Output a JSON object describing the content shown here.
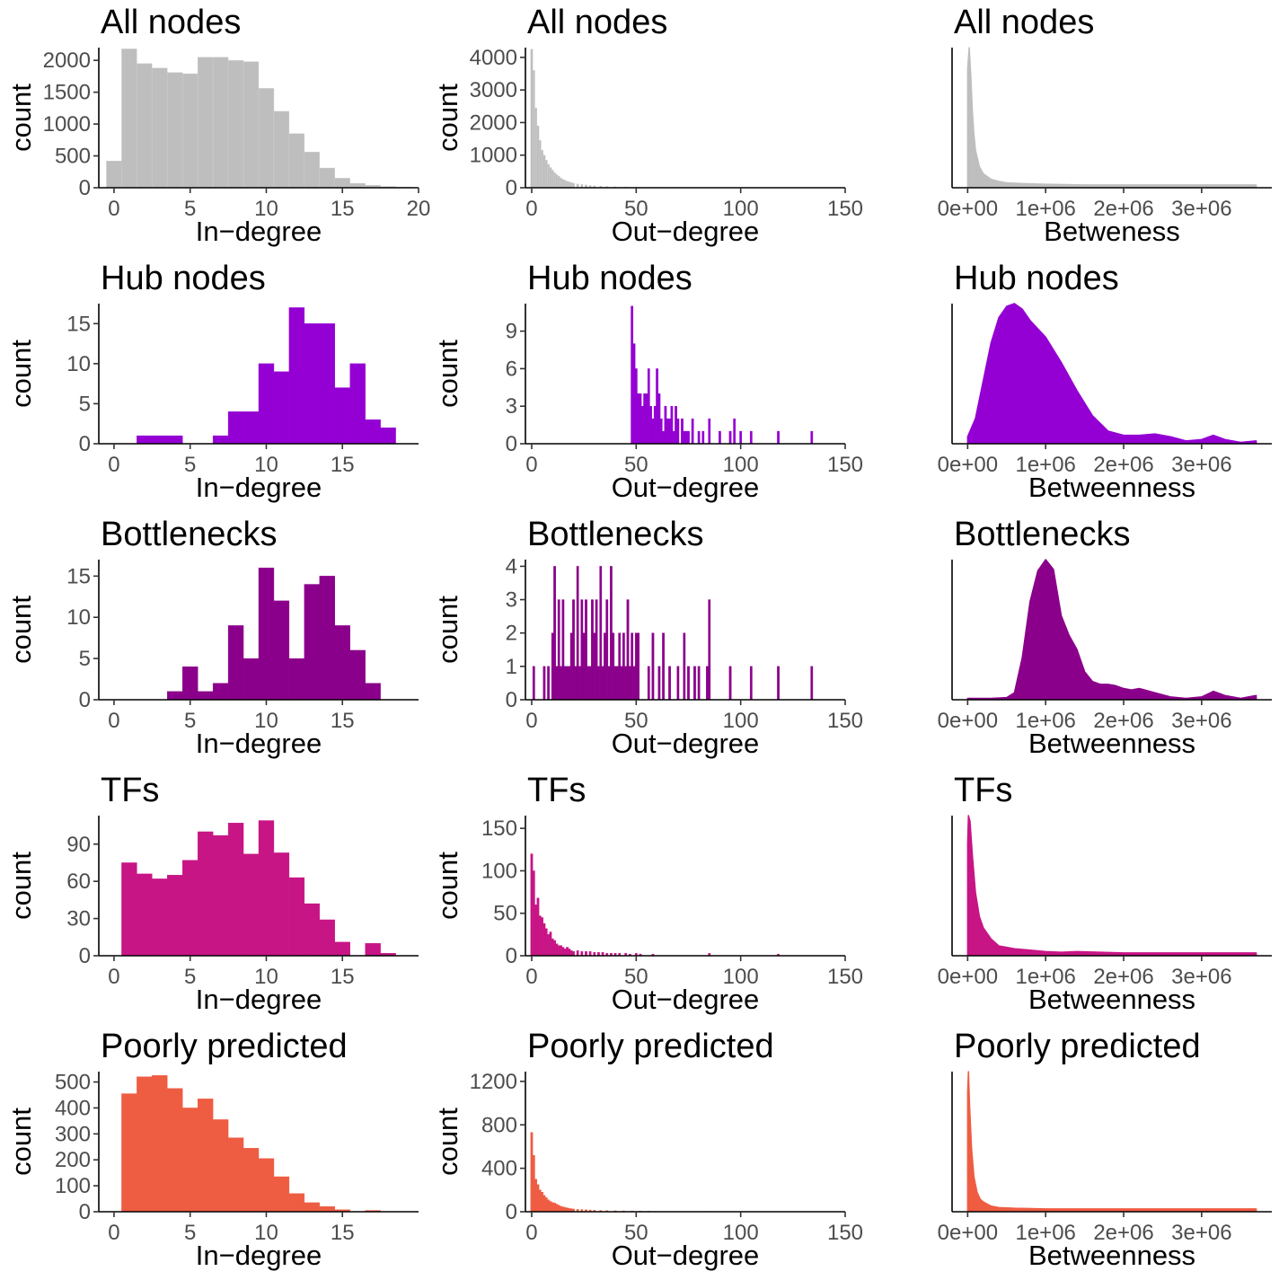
{
  "chart_data": [
    {
      "id": "p1",
      "type": "bar",
      "title": "All nodes",
      "xlabel": "In−degree",
      "ylabel": "count",
      "color": "#bebebe",
      "xlim": [
        -1,
        20
      ],
      "xticks": [
        0,
        5,
        10,
        15,
        20
      ],
      "ylim": [
        0,
        2200
      ],
      "yticks": [
        0,
        500,
        1000,
        1500,
        2000
      ],
      "binwidth": 1,
      "x": [
        0,
        1,
        2,
        3,
        4,
        5,
        6,
        7,
        8,
        9,
        10,
        11,
        12,
        13,
        14,
        15,
        16,
        17,
        18,
        19
      ],
      "values": [
        420,
        2180,
        1950,
        1880,
        1810,
        1790,
        2050,
        2050,
        2000,
        1980,
        1560,
        1200,
        850,
        560,
        310,
        150,
        70,
        40,
        20,
        10
      ]
    },
    {
      "id": "p2",
      "type": "bar",
      "title": "All nodes",
      "xlabel": "Out−degree",
      "ylabel": "count",
      "color": "#bebebe",
      "xlim": [
        -3,
        150
      ],
      "xticks": [
        0,
        50,
        100,
        150
      ],
      "ylim": [
        0,
        4300
      ],
      "yticks": [
        0,
        1000,
        2000,
        3000,
        4000
      ],
      "binwidth": 1,
      "x": [
        0,
        1,
        2,
        3,
        4,
        5,
        6,
        7,
        8,
        9,
        10,
        11,
        12,
        13,
        14,
        15,
        16,
        17,
        18,
        19,
        20,
        22,
        24,
        26,
        28,
        30,
        33,
        36,
        40,
        45,
        50,
        56,
        62,
        70,
        78,
        85,
        92,
        100,
        118,
        135
      ],
      "values": [
        4250,
        3600,
        2450,
        1900,
        1450,
        1150,
        1000,
        850,
        720,
        620,
        540,
        460,
        400,
        350,
        300,
        260,
        230,
        200,
        180,
        160,
        140,
        120,
        100,
        85,
        70,
        60,
        50,
        40,
        30,
        25,
        20,
        15,
        12,
        10,
        8,
        6,
        6,
        5,
        4,
        4
      ]
    },
    {
      "id": "p3",
      "type": "area",
      "title": "All nodes",
      "xlabel": "Betweness",
      "ylabel": "",
      "color": "#bebebe",
      "xlim": [
        -200000,
        3900000
      ],
      "xticks": [
        0,
        1000000,
        2000000,
        3000000
      ],
      "xticklabels": [
        "0e+00",
        "1e+06",
        "2e+06",
        "3e+06"
      ],
      "ylim": [
        0,
        1
      ],
      "x": [
        0,
        20000,
        40000,
        60000,
        80000,
        100000,
        150000,
        200000,
        300000,
        400000,
        500000,
        700000,
        1000000,
        1500000,
        2000000,
        3000000,
        3700000
      ],
      "values": [
        0.85,
        1.0,
        0.8,
        0.55,
        0.38,
        0.27,
        0.15,
        0.1,
        0.06,
        0.045,
        0.035,
        0.03,
        0.025,
        0.02,
        0.02,
        0.02,
        0.02
      ]
    },
    {
      "id": "p4",
      "type": "bar",
      "title": "Hub nodes",
      "xlabel": "In−degree",
      "ylabel": "count",
      "color": "#9400d3",
      "xlim": [
        -1,
        20
      ],
      "xticks": [
        0,
        5,
        10,
        15
      ],
      "ylim": [
        0,
        17.5
      ],
      "yticks": [
        0,
        5,
        10,
        15
      ],
      "binwidth": 1,
      "x": [
        2,
        3,
        4,
        7,
        8,
        9,
        10,
        11,
        12,
        13,
        14,
        15,
        16,
        17,
        18
      ],
      "values": [
        1,
        1,
        1,
        1,
        4,
        4,
        10,
        9,
        17,
        15,
        15,
        7,
        10,
        3,
        2
      ]
    },
    {
      "id": "p5",
      "type": "bar",
      "title": "Hub nodes",
      "xlabel": "Out−degree",
      "ylabel": "count",
      "color": "#9400d3",
      "xlim": [
        -3,
        150
      ],
      "xticks": [
        0,
        50,
        100,
        150
      ],
      "ylim": [
        0,
        11.2
      ],
      "yticks": [
        0,
        3,
        6,
        9
      ],
      "binwidth": 1,
      "x": [
        48,
        49,
        50,
        51,
        52,
        53,
        54,
        55,
        56,
        57,
        58,
        59,
        60,
        61,
        62,
        63,
        64,
        65,
        66,
        67,
        68,
        69,
        70,
        72,
        73,
        74,
        75,
        77,
        80,
        82,
        85,
        90,
        95,
        97,
        100,
        105,
        118,
        134
      ],
      "values": [
        11,
        8,
        6,
        4,
        4,
        3,
        4,
        4,
        6,
        3,
        2,
        3,
        6,
        4,
        2,
        1,
        3,
        2,
        2,
        3,
        1,
        3,
        2,
        2,
        1,
        1,
        1,
        2,
        1,
        1,
        2,
        1,
        1,
        2,
        1,
        1,
        1,
        1
      ]
    },
    {
      "id": "p6",
      "type": "area",
      "title": "Hub nodes",
      "xlabel": "Betweenness",
      "ylabel": "",
      "color": "#9400d3",
      "xlim": [
        -200000,
        3900000
      ],
      "xticks": [
        0,
        1000000,
        2000000,
        3000000
      ],
      "xticklabels": [
        "0e+00",
        "1e+06",
        "2e+06",
        "3e+06"
      ],
      "ylim": [
        0,
        1
      ],
      "x": [
        0,
        100000,
        200000,
        300000,
        400000,
        500000,
        600000,
        700000,
        800000,
        900000,
        1000000,
        1200000,
        1400000,
        1600000,
        1800000,
        2000000,
        2200000,
        2400000,
        2600000,
        2800000,
        3000000,
        3150000,
        3300000,
        3500000,
        3700000
      ],
      "values": [
        0.05,
        0.18,
        0.45,
        0.72,
        0.9,
        0.98,
        1.0,
        0.96,
        0.88,
        0.82,
        0.76,
        0.58,
        0.38,
        0.2,
        0.09,
        0.06,
        0.06,
        0.07,
        0.05,
        0.02,
        0.03,
        0.06,
        0.03,
        0.01,
        0.02
      ]
    },
    {
      "id": "p7",
      "type": "bar",
      "title": "Bottlenecks",
      "xlabel": "In−degree",
      "ylabel": "count",
      "color": "#8b008b",
      "xlim": [
        -1,
        20
      ],
      "xticks": [
        0,
        5,
        10,
        15
      ],
      "ylim": [
        0,
        17
      ],
      "yticks": [
        0,
        5,
        10,
        15
      ],
      "binwidth": 1,
      "x": [
        4,
        5,
        6,
        7,
        8,
        9,
        10,
        11,
        12,
        13,
        14,
        15,
        16,
        17
      ],
      "values": [
        1,
        4,
        1,
        2,
        9,
        5,
        16,
        12,
        5,
        14,
        15,
        9,
        6,
        2
      ]
    },
    {
      "id": "p8",
      "type": "bar",
      "title": "Bottlenecks",
      "xlabel": "Out−degree",
      "ylabel": "count",
      "color": "#8b008b",
      "xlim": [
        -3,
        150
      ],
      "xticks": [
        0,
        50,
        100,
        150
      ],
      "ylim": [
        0,
        4.2
      ],
      "yticks": [
        0,
        1,
        2,
        3,
        4
      ],
      "binwidth": 1,
      "x": [
        1,
        6,
        8,
        10,
        11,
        12,
        13,
        14,
        15,
        16,
        17,
        18,
        19,
        20,
        21,
        22,
        23,
        24,
        25,
        26,
        27,
        28,
        29,
        30,
        31,
        32,
        33,
        34,
        35,
        36,
        37,
        38,
        39,
        40,
        41,
        42,
        43,
        44,
        45,
        46,
        47,
        48,
        49,
        50,
        51,
        56,
        58,
        61,
        63,
        66,
        70,
        73,
        75,
        78,
        80,
        84,
        85,
        95,
        105,
        118,
        134
      ],
      "values": [
        1,
        1,
        1,
        2,
        4,
        1,
        3,
        1,
        3,
        1,
        1,
        1,
        2,
        3,
        1,
        4,
        1,
        3,
        2,
        3,
        1,
        1,
        3,
        2,
        3,
        1,
        4,
        1,
        2,
        3,
        1,
        4,
        2,
        1,
        1,
        2,
        1,
        2,
        1,
        3,
        1,
        2,
        1,
        2,
        2,
        1,
        2,
        1,
        2,
        1,
        1,
        2,
        1,
        1,
        1,
        1,
        3,
        1,
        1,
        1,
        1
      ]
    },
    {
      "id": "p9",
      "type": "area",
      "title": "Bottlenecks",
      "xlabel": "Betweenness",
      "ylabel": "",
      "color": "#8b008b",
      "xlim": [
        -200000,
        3900000
      ],
      "xticks": [
        0,
        1000000,
        2000000,
        3000000
      ],
      "xticklabels": [
        "0e+00",
        "1e+06",
        "2e+06",
        "3e+06"
      ],
      "ylim": [
        0,
        1
      ],
      "x": [
        0,
        300000,
        500000,
        600000,
        700000,
        800000,
        900000,
        1000000,
        1100000,
        1200000,
        1300000,
        1400000,
        1500000,
        1600000,
        1700000,
        1800000,
        1900000,
        2000000,
        2100000,
        2200000,
        2400000,
        2600000,
        2800000,
        3000000,
        3150000,
        3300000,
        3500000,
        3700000
      ],
      "values": [
        0.01,
        0.01,
        0.015,
        0.05,
        0.3,
        0.7,
        0.92,
        1.0,
        0.93,
        0.6,
        0.46,
        0.36,
        0.2,
        0.13,
        0.11,
        0.11,
        0.1,
        0.08,
        0.07,
        0.08,
        0.05,
        0.02,
        0.01,
        0.02,
        0.06,
        0.03,
        0.01,
        0.03
      ]
    },
    {
      "id": "p10",
      "type": "bar",
      "title": "TFs",
      "xlabel": "In−degree",
      "ylabel": "count",
      "color": "#c71585",
      "xlim": [
        -1,
        20
      ],
      "xticks": [
        0,
        5,
        10,
        15
      ],
      "ylim": [
        0,
        113
      ],
      "yticks": [
        0,
        30,
        60,
        90
      ],
      "binwidth": 1,
      "x": [
        1,
        2,
        3,
        4,
        5,
        6,
        7,
        8,
        9,
        10,
        11,
        12,
        13,
        14,
        15,
        17,
        18
      ],
      "values": [
        75,
        66,
        62,
        65,
        77,
        100,
        97,
        107,
        82,
        109,
        83,
        63,
        42,
        29,
        11,
        10,
        2
      ]
    },
    {
      "id": "p11",
      "type": "bar",
      "title": "TFs",
      "xlabel": "Out−degree",
      "ylabel": "count",
      "color": "#c71585",
      "xlim": [
        -3,
        150
      ],
      "xticks": [
        0,
        50,
        100,
        150
      ],
      "ylim": [
        0,
        165
      ],
      "yticks": [
        0,
        50,
        100,
        150
      ],
      "binwidth": 1,
      "x": [
        0,
        1,
        2,
        3,
        4,
        5,
        6,
        7,
        8,
        9,
        10,
        11,
        12,
        13,
        14,
        15,
        16,
        17,
        18,
        19,
        20,
        22,
        24,
        26,
        28,
        30,
        32,
        34,
        36,
        38,
        40,
        42,
        45,
        47,
        50,
        52,
        58,
        85,
        118
      ],
      "values": [
        120,
        100,
        60,
        68,
        47,
        45,
        38,
        32,
        25,
        28,
        20,
        18,
        14,
        12,
        12,
        10,
        8,
        10,
        8,
        6,
        5,
        6,
        5,
        5,
        5,
        4,
        4,
        4,
        3,
        3,
        3,
        3,
        3,
        2,
        3,
        2,
        2,
        3,
        2
      ]
    },
    {
      "id": "p12",
      "type": "area",
      "title": "TFs",
      "xlabel": "Betweenness",
      "ylabel": "",
      "color": "#c71585",
      "xlim": [
        -200000,
        3900000
      ],
      "xticks": [
        0,
        1000000,
        2000000,
        3000000
      ],
      "xticklabels": [
        "0e+00",
        "1e+06",
        "2e+06",
        "3e+06"
      ],
      "ylim": [
        0,
        1
      ],
      "x": [
        0,
        10000,
        30000,
        60000,
        100000,
        150000,
        200000,
        250000,
        300000,
        400000,
        500000,
        600000,
        800000,
        1000000,
        1200000,
        1400000,
        2000000,
        3000000,
        3700000
      ],
      "values": [
        0.8,
        1.0,
        0.96,
        0.72,
        0.45,
        0.28,
        0.2,
        0.16,
        0.12,
        0.07,
        0.06,
        0.05,
        0.04,
        0.03,
        0.025,
        0.03,
        0.02,
        0.02,
        0.02
      ]
    },
    {
      "id": "p13",
      "type": "bar",
      "title": "Poorly predicted",
      "xlabel": "In−degree",
      "ylabel": "count",
      "color": "#ee5c42",
      "xlim": [
        -1,
        20
      ],
      "xticks": [
        0,
        5,
        10,
        15
      ],
      "ylim": [
        0,
        540
      ],
      "yticks": [
        0,
        100,
        200,
        300,
        400,
        500
      ],
      "binwidth": 1,
      "x": [
        1,
        2,
        3,
        4,
        5,
        6,
        7,
        8,
        9,
        10,
        11,
        12,
        13,
        14,
        15,
        17
      ],
      "values": [
        455,
        520,
        525,
        475,
        400,
        435,
        355,
        285,
        245,
        205,
        135,
        70,
        35,
        20,
        8,
        5
      ]
    },
    {
      "id": "p14",
      "type": "bar",
      "title": "Poorly predicted",
      "xlabel": "Out−degree",
      "ylabel": "count",
      "color": "#ee5c42",
      "xlim": [
        -3,
        150
      ],
      "xticks": [
        0,
        50,
        100,
        150
      ],
      "ylim": [
        0,
        1290
      ],
      "yticks": [
        0,
        400,
        800,
        1200
      ],
      "binwidth": 1,
      "x": [
        0,
        1,
        2,
        3,
        4,
        5,
        6,
        7,
        8,
        9,
        10,
        11,
        12,
        13,
        14,
        15,
        16,
        17,
        18,
        19,
        20,
        22,
        24,
        26,
        28,
        30,
        33,
        36,
        40,
        44,
        48,
        52,
        56,
        85
      ],
      "values": [
        730,
        520,
        300,
        250,
        200,
        180,
        150,
        130,
        110,
        95,
        85,
        80,
        70,
        60,
        50,
        45,
        40,
        35,
        30,
        28,
        25,
        22,
        20,
        18,
        16,
        14,
        12,
        10,
        9,
        8,
        7,
        6,
        5,
        4
      ]
    },
    {
      "id": "p15",
      "type": "area",
      "title": "Poorly predicted",
      "xlabel": "Betweenness",
      "ylabel": "",
      "color": "#ee5c42",
      "xlim": [
        -200000,
        3900000
      ],
      "xticks": [
        0,
        1000000,
        2000000,
        3000000
      ],
      "xticklabels": [
        "0e+00",
        "1e+06",
        "2e+06",
        "3e+06"
      ],
      "ylim": [
        0,
        1
      ],
      "x": [
        0,
        10000,
        25000,
        50000,
        80000,
        120000,
        160000,
        200000,
        300000,
        400000,
        600000,
        1000000,
        2000000,
        3000000,
        3700000
      ],
      "values": [
        0.85,
        1.0,
        0.75,
        0.45,
        0.25,
        0.14,
        0.09,
        0.07,
        0.04,
        0.03,
        0.025,
        0.02,
        0.02,
        0.02,
        0.02
      ]
    }
  ]
}
